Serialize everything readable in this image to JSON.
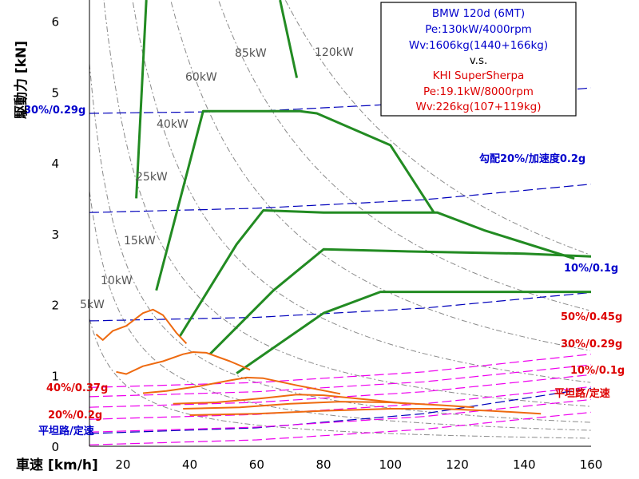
{
  "chart_data": {
    "type": "line",
    "xlabel": "車速 [km/h]",
    "ylabel": "駆動力 [kN]",
    "xlim": [
      10,
      160
    ],
    "ylim": [
      0,
      6.3
    ],
    "x_ticks": [
      "20",
      "40",
      "60",
      "80",
      "100",
      "120",
      "140",
      "160"
    ],
    "y_ticks": [
      "0",
      "1",
      "2",
      "3",
      "4",
      "5",
      "6"
    ],
    "grid": false,
    "legend": {
      "placement": "top-right",
      "lines": [
        {
          "text": "BMW 120d (6MT)",
          "color": "#0000cc"
        },
        {
          "text": "Pe:130kW/4000rpm",
          "color": "#0000cc"
        },
        {
          "text": "Wv:1606kg(1440+166kg)",
          "color": "#0000cc"
        },
        {
          "text": "v.s.",
          "color": "#000000"
        },
        {
          "text": "KHI SuperSherpa",
          "color": "#dd0000"
        },
        {
          "text": "Pe:19.1kW/8000rpm",
          "color": "#dd0000"
        },
        {
          "text": "Wv:226kg(107+119kg)",
          "color": "#dd0000"
        }
      ]
    },
    "power_curves": [
      {
        "label": "5kW",
        "kw": 5
      },
      {
        "label": "10kW",
        "kw": 10
      },
      {
        "label": "15kW",
        "kw": 15
      },
      {
        "label": "25kW",
        "kw": 25
      },
      {
        "label": "40kW",
        "kw": 40
      },
      {
        "label": "60kW",
        "kw": 60
      },
      {
        "label": "85kW",
        "kw": 85
      },
      {
        "label": "120kW",
        "kw": 120
      }
    ],
    "resistance_bmw": [
      {
        "label": "30%/0.29g",
        "values": [
          [
            10,
            4.7
          ],
          [
            60,
            4.73
          ],
          [
            110,
            4.85
          ],
          [
            160,
            5.06
          ]
        ]
      },
      {
        "label": "勾配20%/加速度0.2g",
        "values": [
          [
            10,
            3.3
          ],
          [
            60,
            3.36
          ],
          [
            110,
            3.48
          ],
          [
            160,
            3.7
          ]
        ]
      },
      {
        "label": "10%/0.1g",
        "values": [
          [
            10,
            1.77
          ],
          [
            60,
            1.82
          ],
          [
            110,
            1.95
          ],
          [
            160,
            2.17
          ]
        ]
      },
      {
        "label": "平坦路/定速",
        "values": [
          [
            10,
            0.18
          ],
          [
            60,
            0.26
          ],
          [
            110,
            0.46
          ],
          [
            160,
            0.82
          ]
        ]
      }
    ],
    "resistance_bike": [
      {
        "label": "50%/0.45g",
        "values": [
          [
            10,
            0.83
          ],
          [
            60,
            0.9
          ],
          [
            110,
            1.05
          ],
          [
            160,
            1.3
          ]
        ]
      },
      {
        "label": "40%/0.37g",
        "values": [
          [
            10,
            0.7
          ],
          [
            60,
            0.77
          ],
          [
            110,
            0.91
          ],
          [
            160,
            1.15
          ]
        ]
      },
      {
        "label": "30%/0.29g",
        "values": [
          [
            10,
            0.55
          ],
          [
            60,
            0.62
          ],
          [
            110,
            0.77
          ],
          [
            160,
            1.01
          ]
        ]
      },
      {
        "label": "20%/0.2g",
        "values": [
          [
            10,
            0.38
          ],
          [
            60,
            0.45
          ],
          [
            110,
            0.6
          ],
          [
            160,
            0.84
          ]
        ]
      },
      {
        "label": "10%/0.1g",
        "values": [
          [
            10,
            0.2
          ],
          [
            60,
            0.27
          ],
          [
            110,
            0.42
          ],
          [
            160,
            0.66
          ]
        ]
      },
      {
        "label": "平坦路/定速",
        "values": [
          [
            10,
            0.02
          ],
          [
            60,
            0.09
          ],
          [
            110,
            0.24
          ],
          [
            160,
            0.48
          ]
        ]
      }
    ],
    "series": [
      {
        "color": "#228b22",
        "values": [
          [
            24,
            3.5
          ],
          [
            27,
            6.3
          ]
        ]
      },
      {
        "color": "#228b22",
        "values": [
          [
            67,
            6.3
          ],
          [
            72,
            5.2
          ]
        ]
      },
      {
        "color": "#228b22",
        "values": [
          [
            30,
            2.2
          ],
          [
            44,
            4.73
          ],
          [
            73,
            4.73
          ],
          [
            78,
            4.7
          ],
          [
            100,
            4.25
          ],
          [
            113,
            3.3
          ]
        ]
      },
      {
        "color": "#228b22",
        "values": [
          [
            37,
            1.55
          ],
          [
            54,
            2.85
          ],
          [
            62,
            3.33
          ],
          [
            80,
            3.3
          ],
          [
            114,
            3.3
          ],
          [
            128,
            3.05
          ],
          [
            155,
            2.65
          ]
        ]
      },
      {
        "color": "#228b22",
        "values": [
          [
            46,
            1.3
          ],
          [
            65,
            2.2
          ],
          [
            80,
            2.78
          ],
          [
            106,
            2.75
          ],
          [
            140,
            2.72
          ],
          [
            160,
            2.68
          ]
        ]
      },
      {
        "color": "#228b22",
        "values": [
          [
            54,
            1.03
          ],
          [
            80,
            1.88
          ],
          [
            97,
            2.18
          ],
          [
            120,
            2.18
          ],
          [
            160,
            2.18
          ]
        ]
      },
      {
        "color": "#ee6a10",
        "values": [
          [
            12,
            1.58
          ],
          [
            14,
            1.5
          ],
          [
            17,
            1.63
          ],
          [
            21,
            1.7
          ],
          [
            26,
            1.88
          ],
          [
            29,
            1.93
          ],
          [
            32,
            1.85
          ],
          [
            36,
            1.6
          ],
          [
            39,
            1.45
          ]
        ]
      },
      {
        "color": "#ee6a10",
        "values": [
          [
            18,
            1.05
          ],
          [
            21,
            1.02
          ],
          [
            26,
            1.13
          ],
          [
            32,
            1.2
          ],
          [
            38,
            1.3
          ],
          [
            41,
            1.33
          ],
          [
            45,
            1.32
          ],
          [
            52,
            1.2
          ],
          [
            58,
            1.08
          ]
        ]
      },
      {
        "color": "#ee6a10",
        "values": [
          [
            26,
            0.75
          ],
          [
            33,
            0.78
          ],
          [
            43,
            0.85
          ],
          [
            52,
            0.93
          ],
          [
            57,
            0.97
          ],
          [
            62,
            0.96
          ],
          [
            72,
            0.86
          ],
          [
            85,
            0.74
          ]
        ]
      },
      {
        "color": "#ee6a10",
        "values": [
          [
            35,
            0.6
          ],
          [
            48,
            0.62
          ],
          [
            62,
            0.68
          ],
          [
            72,
            0.73
          ],
          [
            80,
            0.72
          ],
          [
            95,
            0.65
          ],
          [
            105,
            0.6
          ]
        ]
      },
      {
        "color": "#ee6a10",
        "values": [
          [
            38,
            0.53
          ],
          [
            55,
            0.55
          ],
          [
            70,
            0.6
          ],
          [
            85,
            0.63
          ],
          [
            100,
            0.62
          ],
          [
            115,
            0.58
          ],
          [
            125,
            0.55
          ]
        ]
      },
      {
        "color": "#ee6a10",
        "values": [
          [
            40,
            0.44
          ],
          [
            60,
            0.46
          ],
          [
            80,
            0.5
          ],
          [
            100,
            0.53
          ],
          [
            115,
            0.53
          ],
          [
            130,
            0.5
          ],
          [
            145,
            0.46
          ]
        ]
      }
    ]
  }
}
